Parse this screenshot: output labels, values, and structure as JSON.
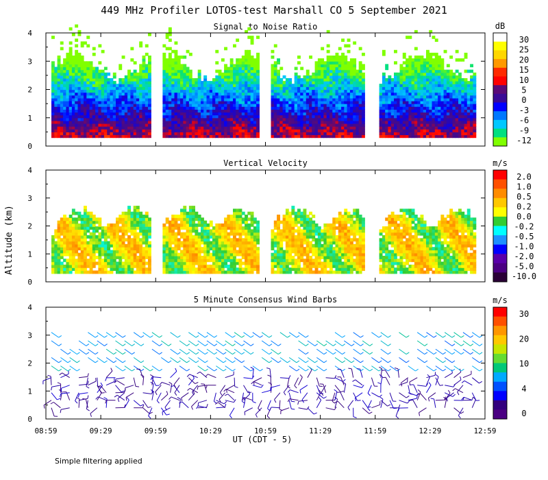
{
  "figure": {
    "title": "449 MHz Profiler LOTOS-test Marshall CO  5 September 2021",
    "y_axis_label": "Altitude (km)",
    "x_axis_label": "UT  (CDT - 5)",
    "x_ticks": [
      "08:59",
      "09:29",
      "09:59",
      "10:29",
      "10:59",
      "11:29",
      "11:59",
      "12:29",
      "12:59"
    ],
    "y_ticks": [
      "0",
      "1",
      "2",
      "3",
      "4"
    ],
    "footnote": "Simple filtering applied"
  },
  "chart_data": [
    {
      "type": "heatmap",
      "title": "Signal to Noise Ratio",
      "xlabel": "UT  (CDT - 5)",
      "ylabel": "Altitude (km)",
      "x_range_hours": [
        8.983,
        12.983
      ],
      "ylim": [
        0,
        4
      ],
      "colorbar_unit": "dB",
      "colorbar_ticks": [
        "30",
        "25",
        "20",
        "15",
        "10",
        "5",
        "0",
        "-3",
        "-6",
        "-9",
        "-12"
      ],
      "colorbar_colors": [
        "#ffffff",
        "#ffff00",
        "#ffd700",
        "#ff9900",
        "#ff2a00",
        "#ff0000",
        "#5a0a78",
        "#3a0a96",
        "#0000ff",
        "#0078ff",
        "#00c8ff",
        "#00e080",
        "#80ff00"
      ],
      "data_gaps_hours": [
        [
          9.95,
          10.05
        ],
        [
          10.92,
          11.03
        ],
        [
          11.89,
          12.01
        ]
      ]
    },
    {
      "type": "heatmap",
      "title": "Vertical Velocity",
      "xlabel": "UT  (CDT - 5)",
      "ylabel": "Altitude (km)",
      "x_range_hours": [
        8.983,
        12.983
      ],
      "ylim": [
        0,
        4
      ],
      "colorbar_unit": "m/s",
      "colorbar_ticks": [
        "2.0",
        "1.0",
        "0.5",
        "0.2",
        "0.0",
        "-0.2",
        "-0.5",
        "-1.0",
        "-2.0",
        "-5.0",
        "-10.0"
      ],
      "colorbar_colors": [
        "#ff0000",
        "#ff5000",
        "#ff8c00",
        "#ffc800",
        "#ffff00",
        "#32cd32",
        "#00ffff",
        "#1e90ff",
        "#0000ff",
        "#5a00aa",
        "#4b0082",
        "#2a0036"
      ],
      "data_gaps_hours": [
        [
          9.95,
          10.05
        ],
        [
          10.92,
          11.03
        ],
        [
          11.89,
          12.01
        ]
      ]
    },
    {
      "type": "scatter",
      "title": "5 Minute Consensus Wind Barbs",
      "xlabel": "UT  (CDT - 5)",
      "ylabel": "Altitude (km)",
      "x_range_hours": [
        8.983,
        12.983
      ],
      "ylim": [
        0,
        4
      ],
      "colorbar_unit": "m/s",
      "colorbar_ticks": [
        "30",
        "20",
        "10",
        "4",
        "0"
      ],
      "colorbar_colors": [
        "#ff0000",
        "#ff5000",
        "#ff9600",
        "#ffc800",
        "#c8e600",
        "#64dc32",
        "#00c878",
        "#00aaff",
        "#0050ff",
        "#0000ff",
        "#32007d",
        "#4b0082"
      ],
      "upper_wind_speed_ms": 12,
      "lower_wind_speed_ms": 2
    }
  ]
}
